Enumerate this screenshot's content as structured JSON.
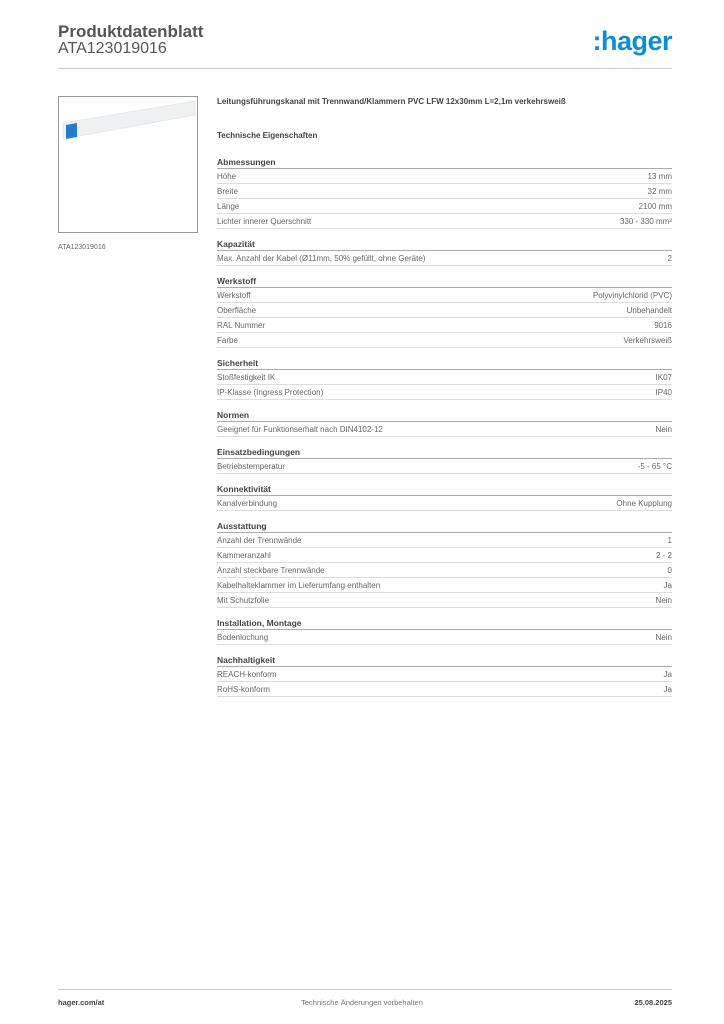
{
  "header": {
    "title": "Produktdatenblatt",
    "code": "ATA123019016",
    "logo": ":hager",
    "brand_color": "#0a8fd6"
  },
  "product": {
    "image_caption": "ATA123019016",
    "description": "Leitungsführungskanal mit Trennwand/Klammern PVC LFW 12x30mm L=2,1m verkehrsweiß",
    "section_title": "Technische Eigenschaften"
  },
  "sections": [
    {
      "title": "Abmessungen",
      "rows": [
        [
          "Höhe",
          "13 mm"
        ],
        [
          "Breite",
          "32 mm"
        ],
        [
          "Länge",
          "2100 mm"
        ],
        [
          "Lichter innerer Querschnitt",
          "330 - 330 mm²"
        ]
      ]
    },
    {
      "title": "Kapazität",
      "rows": [
        [
          "Max. Anzahl der Kabel (Ø11mm, 50% gefüllt, ohne Geräte)",
          "2"
        ]
      ]
    },
    {
      "title": "Werkstoff",
      "rows": [
        [
          "Werkstoff",
          "Polyvinylchlorid (PVC)"
        ],
        [
          "Oberfläche",
          "Unbehandelt"
        ],
        [
          "RAL Nummer",
          "9016"
        ],
        [
          "Farbe",
          "Verkehrsweiß"
        ]
      ]
    },
    {
      "title": "Sicherheit",
      "rows": [
        [
          "Stoßfestigkeit IK",
          "IK07"
        ],
        [
          "IP-Klasse (Ingress Protection)",
          "IP40"
        ]
      ]
    },
    {
      "title": "Normen",
      "rows": [
        [
          "Geeignet für Funktionserhalt nach DIN4102-12",
          "Nein"
        ]
      ]
    },
    {
      "title": "Einsatzbedingungen",
      "rows": [
        [
          "Betriebstemperatur",
          "-5 - 65 °C"
        ]
      ]
    },
    {
      "title": "Konnektivität",
      "rows": [
        [
          "Kanalverbindung",
          "Ohne Kupplung"
        ]
      ]
    },
    {
      "title": "Ausstattung",
      "rows": [
        [
          "Anzahl der Trennwände",
          "1"
        ],
        [
          "Kammeranzahl",
          "2 - 2"
        ],
        [
          "Anzahl steckbare Trennwände",
          "0"
        ],
        [
          "Kabelhalteklammer im Lieferumfang enthalten",
          "Ja"
        ],
        [
          "Mit Schutzfolie",
          "Nein"
        ]
      ]
    },
    {
      "title": "Installation, Montage",
      "rows": [
        [
          "Bodenlochung",
          "Nein"
        ]
      ]
    },
    {
      "title": "Nachhaltigkeit",
      "rows": [
        [
          "REACH-konform",
          "Ja"
        ],
        [
          "RoHS-konform",
          "Ja"
        ]
      ]
    }
  ],
  "footer": {
    "website": "hager.com/at",
    "note": "Technische Änderungen vorbehalten",
    "date": "25.08.2025"
  }
}
